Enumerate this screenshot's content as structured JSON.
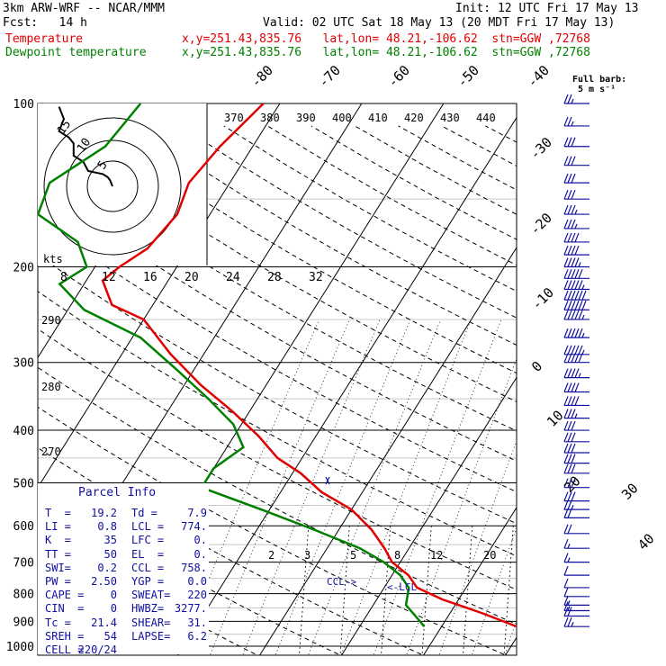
{
  "header": {
    "model": "3km ARW-WRF -- NCAR/MMM",
    "init": "Init: 12 UTC Fri 17 May 13",
    "fcst": "Fcst:   14 h",
    "valid": "Valid: 02 UTC Sat 18 May 13 (20 MDT Fri 17 May 13)",
    "temp_label": "Temperature",
    "temp_loc": "x,y=251.43,835.76   lat,lon= 48.21,-106.62  stn=GGW ,72768",
    "dew_label": "Dewpoint temperature",
    "dew_loc": "x,y=251.43,835.76   lat,lon= 48.21,-106.62  stn=GGW ,72768"
  },
  "barb_legend": {
    "title": "Full barb:",
    "unit": "5 m s⁻¹"
  },
  "hodograph": {
    "units": "kts",
    "ring_labels": [
      "5",
      "10",
      "15"
    ],
    "speed_ticks": [
      "8",
      "12",
      "16",
      "20",
      "24",
      "28",
      "32"
    ]
  },
  "parcel_info": {
    "title": "Parcel Info",
    "rows": [
      [
        "T  =",
        "19.2",
        "Td =",
        "7.9"
      ],
      [
        "LI =",
        "0.8",
        "LCL =",
        "774."
      ],
      [
        "K  =",
        "35",
        "LFC =",
        "0."
      ],
      [
        "TT =",
        "50",
        "EL  =",
        "0."
      ],
      [
        "SWI=",
        "0.2",
        "CCL =",
        "758."
      ],
      [
        "PW =",
        "2.50",
        "YGP =",
        "0.0"
      ],
      [
        "CAPE =",
        "0",
        "SWEAT=",
        "220"
      ],
      [
        "CIN  =",
        "0",
        "HWBZ=",
        "3277."
      ],
      [
        "Tc =",
        "21.4",
        "SHEAR=",
        "31."
      ],
      [
        "SREH =",
        "54",
        "LAPSE=",
        "6.2"
      ],
      [
        "CELL =",
        "220/24",
        "",
        ""
      ]
    ]
  },
  "annotations": {
    "ccl": "CCL->",
    "lcl": "<-LCL"
  },
  "chart_data": {
    "type": "line",
    "title": "",
    "y_axis": {
      "scale": "log-pressure",
      "range_hPa": [
        1000,
        100
      ],
      "tick_labels": [
        "100",
        "200",
        "300",
        "400",
        "500",
        "600",
        "700",
        "800",
        "900",
        "1000"
      ]
    },
    "isotherm_labels": [
      "-80",
      "-70",
      "-60",
      "-50",
      "-40",
      "-30",
      "-20",
      "-10",
      "0",
      "10",
      "20",
      "30",
      "40"
    ],
    "theta_labels": [
      "370",
      "380",
      "390",
      "400",
      "410",
      "420",
      "430",
      "440"
    ],
    "dry_adiabat_labels": [
      "290",
      "280",
      "270"
    ],
    "mixing_ratio_labels": [
      "2",
      "3",
      "5",
      "8",
      "12",
      "20"
    ],
    "series": [
      {
        "name": "Temperature",
        "color": "#e00000",
        "points": [
          [
            920,
            19.2
          ],
          [
            870,
            14
          ],
          [
            820,
            8
          ],
          [
            780,
            4
          ],
          [
            740,
            2
          ],
          [
            700,
            -1
          ],
          [
            660,
            -3
          ],
          [
            610,
            -6
          ],
          [
            560,
            -10
          ],
          [
            520,
            -15
          ],
          [
            480,
            -19
          ],
          [
            450,
            -23
          ],
          [
            410,
            -27
          ],
          [
            370,
            -32
          ],
          [
            330,
            -38
          ],
          [
            290,
            -44
          ],
          [
            250,
            -50
          ],
          [
            235,
            -55
          ],
          [
            212,
            -58
          ],
          [
            200,
            -57
          ],
          [
            185,
            -55
          ],
          [
            160,
            -54
          ],
          [
            140,
            -55
          ],
          [
            120,
            -54
          ],
          [
            100,
            -52
          ]
        ]
      },
      {
        "name": "Dewpoint temperature",
        "color": "#008000",
        "points": [
          [
            920,
            7.9
          ],
          [
            880,
            6
          ],
          [
            840,
            4
          ],
          [
            780,
            3
          ],
          [
            740,
            1
          ],
          [
            700,
            -2
          ],
          [
            660,
            -6
          ],
          [
            610,
            -13
          ],
          [
            560,
            -21
          ],
          [
            510,
            -30
          ],
          [
            470,
            -30
          ],
          [
            430,
            -28
          ],
          [
            390,
            -31
          ],
          [
            350,
            -36
          ],
          [
            310,
            -42
          ],
          [
            270,
            -49
          ],
          [
            240,
            -58
          ],
          [
            215,
            -63
          ],
          [
            200,
            -61
          ],
          [
            180,
            -64
          ],
          [
            160,
            -71
          ],
          [
            140,
            -72
          ],
          [
            120,
            -68
          ],
          [
            100,
            -67
          ]
        ]
      }
    ],
    "hodograph_trace": [
      [
        0,
        0
      ],
      [
        -1,
        2
      ],
      [
        -2,
        3
      ],
      [
        -4,
        4
      ],
      [
        -10,
        5
      ],
      [
        -12,
        8
      ],
      [
        -16,
        10
      ],
      [
        -16,
        14
      ],
      [
        -18,
        16
      ],
      [
        -22,
        18
      ],
      [
        -20,
        22
      ],
      [
        -21,
        24
      ],
      [
        -22,
        26
      ]
    ],
    "wind_barbs_kts": [
      [
        920,
        25
      ],
      [
        880,
        20
      ],
      [
        860,
        15
      ],
      [
        840,
        15
      ],
      [
        810,
        12
      ],
      [
        780,
        12
      ],
      [
        740,
        12
      ],
      [
        700,
        15
      ],
      [
        660,
        15
      ],
      [
        620,
        20
      ],
      [
        580,
        22
      ],
      [
        560,
        25
      ],
      [
        540,
        28
      ],
      [
        510,
        30
      ],
      [
        480,
        32
      ],
      [
        460,
        30
      ],
      [
        440,
        30
      ],
      [
        420,
        30
      ],
      [
        400,
        32
      ],
      [
        380,
        35
      ],
      [
        360,
        38
      ],
      [
        340,
        40
      ],
      [
        320,
        45
      ],
      [
        300,
        50
      ],
      [
        290,
        55
      ],
      [
        270,
        55
      ],
      [
        250,
        55
      ],
      [
        240,
        58
      ],
      [
        230,
        58
      ],
      [
        220,
        55
      ],
      [
        210,
        50
      ],
      [
        200,
        45
      ],
      [
        190,
        40
      ],
      [
        180,
        38
      ],
      [
        170,
        35
      ],
      [
        160,
        35
      ],
      [
        150,
        32
      ],
      [
        140,
        30
      ],
      [
        130,
        30
      ],
      [
        120,
        28
      ],
      [
        110,
        25
      ],
      [
        100,
        25
      ]
    ]
  }
}
